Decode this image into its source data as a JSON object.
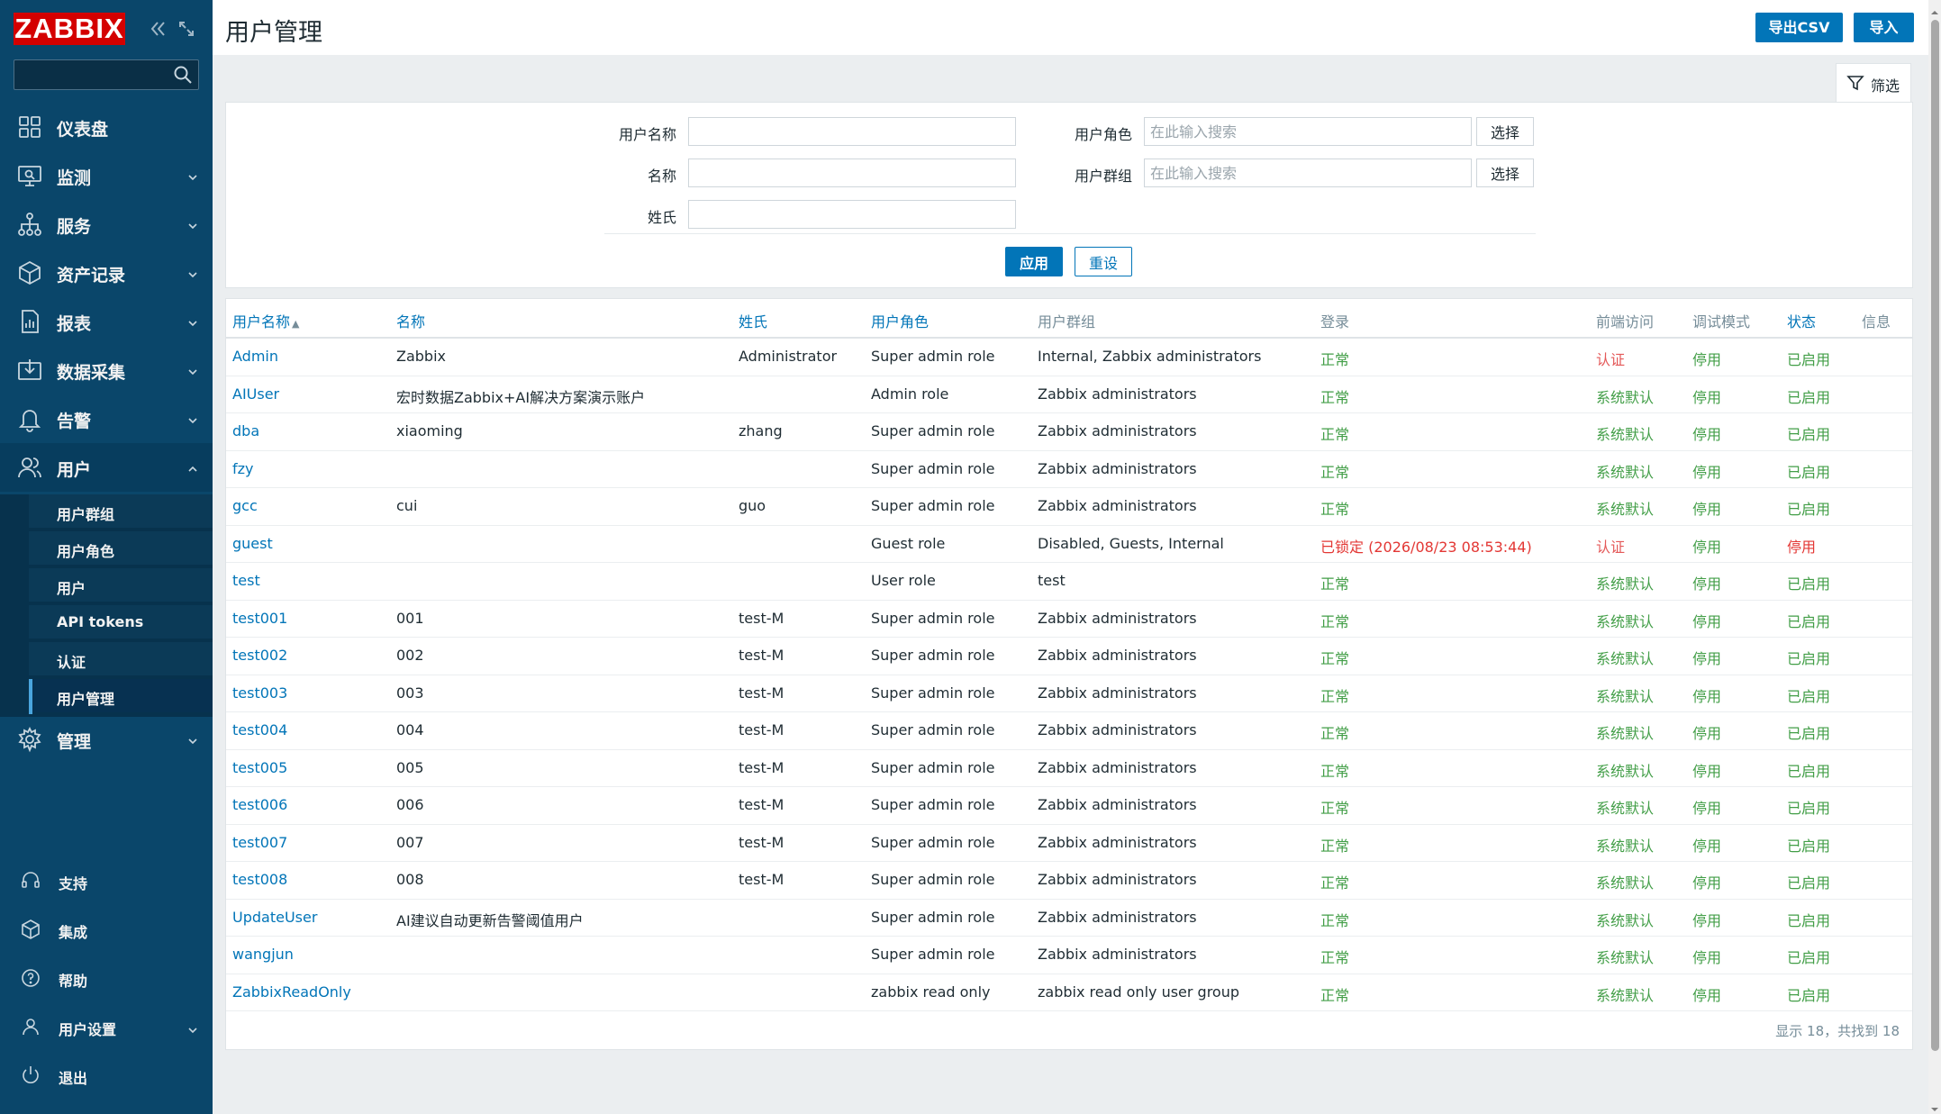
{
  "brand": {
    "logo_text": "ZABBIX"
  },
  "sidebar": {
    "search": {
      "value": "",
      "placeholder": ""
    },
    "items": [
      {
        "label": "仪表盘",
        "icon": "dashboard-icon"
      },
      {
        "label": "监测",
        "icon": "monitoring-icon"
      },
      {
        "label": "服务",
        "icon": "services-icon"
      },
      {
        "label": "资产记录",
        "icon": "inventory-icon"
      },
      {
        "label": "报表",
        "icon": "reports-icon"
      },
      {
        "label": "数据采集",
        "icon": "data-collection-icon"
      },
      {
        "label": "告警",
        "icon": "alerts-icon"
      },
      {
        "label": "用户",
        "icon": "users-icon"
      },
      {
        "label": "管理",
        "icon": "administration-icon"
      }
    ],
    "submenu": [
      {
        "label": "用户群组"
      },
      {
        "label": "用户角色"
      },
      {
        "label": "用户"
      },
      {
        "label": "API tokens"
      },
      {
        "label": "认证"
      },
      {
        "label": "用户管理"
      }
    ],
    "bottom": [
      {
        "label": "支持",
        "icon": "support-icon"
      },
      {
        "label": "集成",
        "icon": "integrations-icon"
      },
      {
        "label": "帮助",
        "icon": "help-icon"
      },
      {
        "label": "用户设置",
        "icon": "user-settings-icon"
      },
      {
        "label": "退出",
        "icon": "sign-out-icon"
      }
    ]
  },
  "header": {
    "title": "用户管理",
    "export_label": "导出CSV",
    "import_label": "导入"
  },
  "filter": {
    "tab_label": "筛选",
    "username_label": "用户名称",
    "name_label": "名称",
    "surname_label": "姓氏",
    "role_label": "用户角色",
    "group_label": "用户群组",
    "username_value": "",
    "name_value": "",
    "surname_value": "",
    "role_placeholder": "在此输入搜索",
    "group_placeholder": "在此输入搜索",
    "select_label": "选择",
    "apply_label": "应用",
    "reset_label": "重设"
  },
  "table": {
    "columns": {
      "username": "用户名称",
      "sort_arrow": "▲",
      "name": "名称",
      "surname": "姓氏",
      "role": "用户角色",
      "groups": "用户群组",
      "login": "登录",
      "frontend": "前端访问",
      "debug": "调试模式",
      "status": "状态",
      "info": "信息"
    },
    "rows": [
      {
        "username": "Admin",
        "name": "Zabbix",
        "surname": "Administrator",
        "role": "Super admin role",
        "groups": "Internal, Zabbix administrators",
        "login": "正常",
        "frontend": "认证",
        "debug": "停用",
        "status": "已启用"
      },
      {
        "username": "AIUser",
        "name": "宏时数据Zabbix+AI解决方案演示账户",
        "surname": "",
        "role": "Admin role",
        "groups": "Zabbix administrators",
        "login": "正常",
        "frontend": "系统默认",
        "debug": "停用",
        "status": "已启用"
      },
      {
        "username": "dba",
        "name": "xiaoming",
        "surname": "zhang",
        "role": "Super admin role",
        "groups": "Zabbix administrators",
        "login": "正常",
        "frontend": "系统默认",
        "debug": "停用",
        "status": "已启用"
      },
      {
        "username": "fzy",
        "name": "",
        "surname": "",
        "role": "Super admin role",
        "groups": "Zabbix administrators",
        "login": "正常",
        "frontend": "系统默认",
        "debug": "停用",
        "status": "已启用"
      },
      {
        "username": "gcc",
        "name": "cui",
        "surname": "guo",
        "role": "Super admin role",
        "groups": "Zabbix administrators",
        "login": "正常",
        "frontend": "系统默认",
        "debug": "停用",
        "status": "已启用"
      },
      {
        "username": "guest",
        "name": "",
        "surname": "",
        "role": "Guest role",
        "groups": "Disabled, Guests, Internal",
        "login": "已锁定 (2026/08/23 08:53:44)",
        "frontend": "认证",
        "debug": "停用",
        "status": "停用"
      },
      {
        "username": "test",
        "name": "",
        "surname": "",
        "role": "User role",
        "groups": "test",
        "login": "正常",
        "frontend": "系统默认",
        "debug": "停用",
        "status": "已启用"
      },
      {
        "username": "test001",
        "name": "001",
        "surname": "test-M",
        "role": "Super admin role",
        "groups": "Zabbix administrators",
        "login": "正常",
        "frontend": "系统默认",
        "debug": "停用",
        "status": "已启用"
      },
      {
        "username": "test002",
        "name": "002",
        "surname": "test-M",
        "role": "Super admin role",
        "groups": "Zabbix administrators",
        "login": "正常",
        "frontend": "系统默认",
        "debug": "停用",
        "status": "已启用"
      },
      {
        "username": "test003",
        "name": "003",
        "surname": "test-M",
        "role": "Super admin role",
        "groups": "Zabbix administrators",
        "login": "正常",
        "frontend": "系统默认",
        "debug": "停用",
        "status": "已启用"
      },
      {
        "username": "test004",
        "name": "004",
        "surname": "test-M",
        "role": "Super admin role",
        "groups": "Zabbix administrators",
        "login": "正常",
        "frontend": "系统默认",
        "debug": "停用",
        "status": "已启用"
      },
      {
        "username": "test005",
        "name": "005",
        "surname": "test-M",
        "role": "Super admin role",
        "groups": "Zabbix administrators",
        "login": "正常",
        "frontend": "系统默认",
        "debug": "停用",
        "status": "已启用"
      },
      {
        "username": "test006",
        "name": "006",
        "surname": "test-M",
        "role": "Super admin role",
        "groups": "Zabbix administrators",
        "login": "正常",
        "frontend": "系统默认",
        "debug": "停用",
        "status": "已启用"
      },
      {
        "username": "test007",
        "name": "007",
        "surname": "test-M",
        "role": "Super admin role",
        "groups": "Zabbix administrators",
        "login": "正常",
        "frontend": "系统默认",
        "debug": "停用",
        "status": "已启用"
      },
      {
        "username": "test008",
        "name": "008",
        "surname": "test-M",
        "role": "Super admin role",
        "groups": "Zabbix administrators",
        "login": "正常",
        "frontend": "系统默认",
        "debug": "停用",
        "status": "已启用"
      },
      {
        "username": "UpdateUser",
        "name": "AI建议自动更新告警阈值用户",
        "surname": "",
        "role": "Super admin role",
        "groups": "Zabbix administrators",
        "login": "正常",
        "frontend": "系统默认",
        "debug": "停用",
        "status": "已启用"
      },
      {
        "username": "wangjun",
        "name": "",
        "surname": "",
        "role": "Super admin role",
        "groups": "Zabbix administrators",
        "login": "正常",
        "frontend": "系统默认",
        "debug": "停用",
        "status": "已启用"
      },
      {
        "username": "ZabbixReadOnly",
        "name": "",
        "surname": "",
        "role": "zabbix read only",
        "groups": "zabbix read only user group",
        "login": "正常",
        "frontend": "系统默认",
        "debug": "停用",
        "status": "已启用"
      }
    ],
    "footer": "显示 18，共找到 18"
  },
  "colors": {
    "sidebar_bg": "#0a466a",
    "accent": "#0275b8",
    "ok_green": "#429e47",
    "alert_red": "#e33734"
  }
}
